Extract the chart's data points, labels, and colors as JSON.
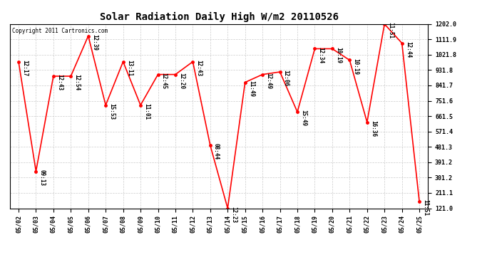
{
  "title": "Solar Radiation Daily High W/m2 20110526",
  "copyright": "Copyright 2011 Cartronics.com",
  "dates": [
    "05/02",
    "05/03",
    "05/04",
    "05/05",
    "05/06",
    "05/07",
    "05/08",
    "05/09",
    "05/10",
    "05/11",
    "05/12",
    "05/13",
    "05/14",
    "05/15",
    "05/16",
    "05/17",
    "05/18",
    "05/19",
    "05/20",
    "05/21",
    "05/22",
    "05/23",
    "05/24",
    "05/25"
  ],
  "values": [
    981,
    338,
    896,
    896,
    1132,
    726,
    981,
    726,
    906,
    906,
    981,
    490,
    121,
    860,
    906,
    921,
    686,
    1057,
    1057,
    990,
    626,
    1202,
    1090,
    161
  ],
  "times": [
    "12:17",
    "09:13",
    "12:43",
    "12:54",
    "12:39",
    "15:53",
    "13:11",
    "11:01",
    "12:45",
    "12:20",
    "12:43",
    "08:44",
    "12:23",
    "11:49",
    "12:49",
    "12:06",
    "15:49",
    "12:34",
    "10:19",
    "10:19",
    "16:36",
    "11:51",
    "12:44",
    "11:51"
  ],
  "ylim_min": 121.0,
  "ylim_max": 1202.0,
  "yticks": [
    121.0,
    211.1,
    301.2,
    391.2,
    481.3,
    571.4,
    661.5,
    751.6,
    841.7,
    931.8,
    1021.8,
    1111.9,
    1202.0
  ],
  "line_color": "#ff0000",
  "bg_color": "#ffffff",
  "grid_color": "#cccccc",
  "title_fontsize": 10,
  "annot_fontsize": 5.5,
  "tick_fontsize": 6,
  "copyright_fontsize": 5.5
}
